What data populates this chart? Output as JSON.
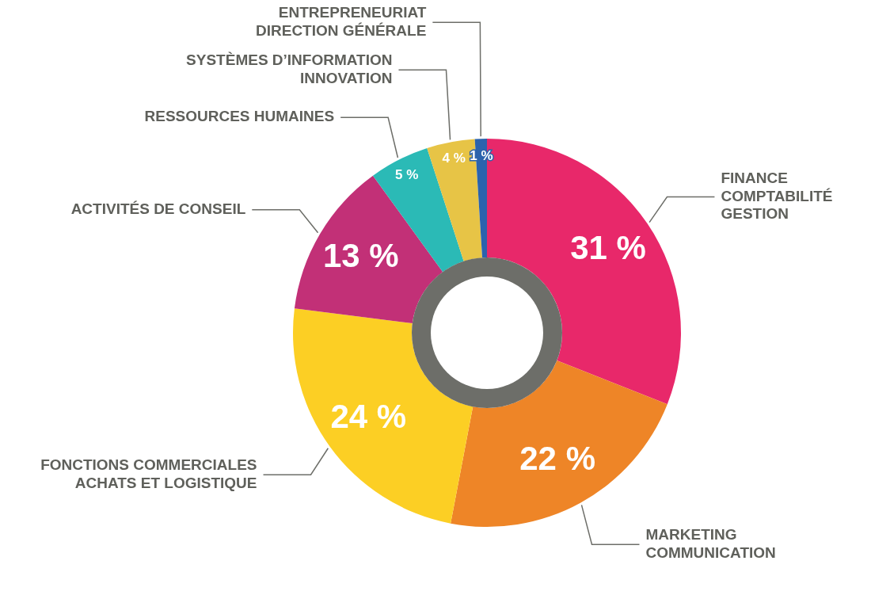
{
  "chart_data": {
    "type": "donut",
    "categories": [
      "FINANCE\nCOMPTABILITÉ\nGESTION",
      "MARKETING\nCOMMUNICATION",
      "FONCTIONS COMMERCIALES\nACHATS ET LOGISTIQUE",
      "ACTIVITÉS DE CONSEIL",
      "RESSOURCES HUMAINES",
      "SYSTÈMES D’INFORMATION\nINNOVATION",
      "ENTREPRENEURIAT\nDIRECTION GÉNÉRALE"
    ],
    "values": [
      31,
      22,
      24,
      13,
      5,
      4,
      1
    ],
    "colors": [
      "#e8286a",
      "#ee8527",
      "#fccf24",
      "#c23077",
      "#2bbab6",
      "#e7c446",
      "#2b63ad"
    ],
    "value_labels": [
      "31 %",
      "22 %",
      "24 %",
      "13 %",
      "5 %",
      "4 %",
      "1 %"
    ]
  }
}
